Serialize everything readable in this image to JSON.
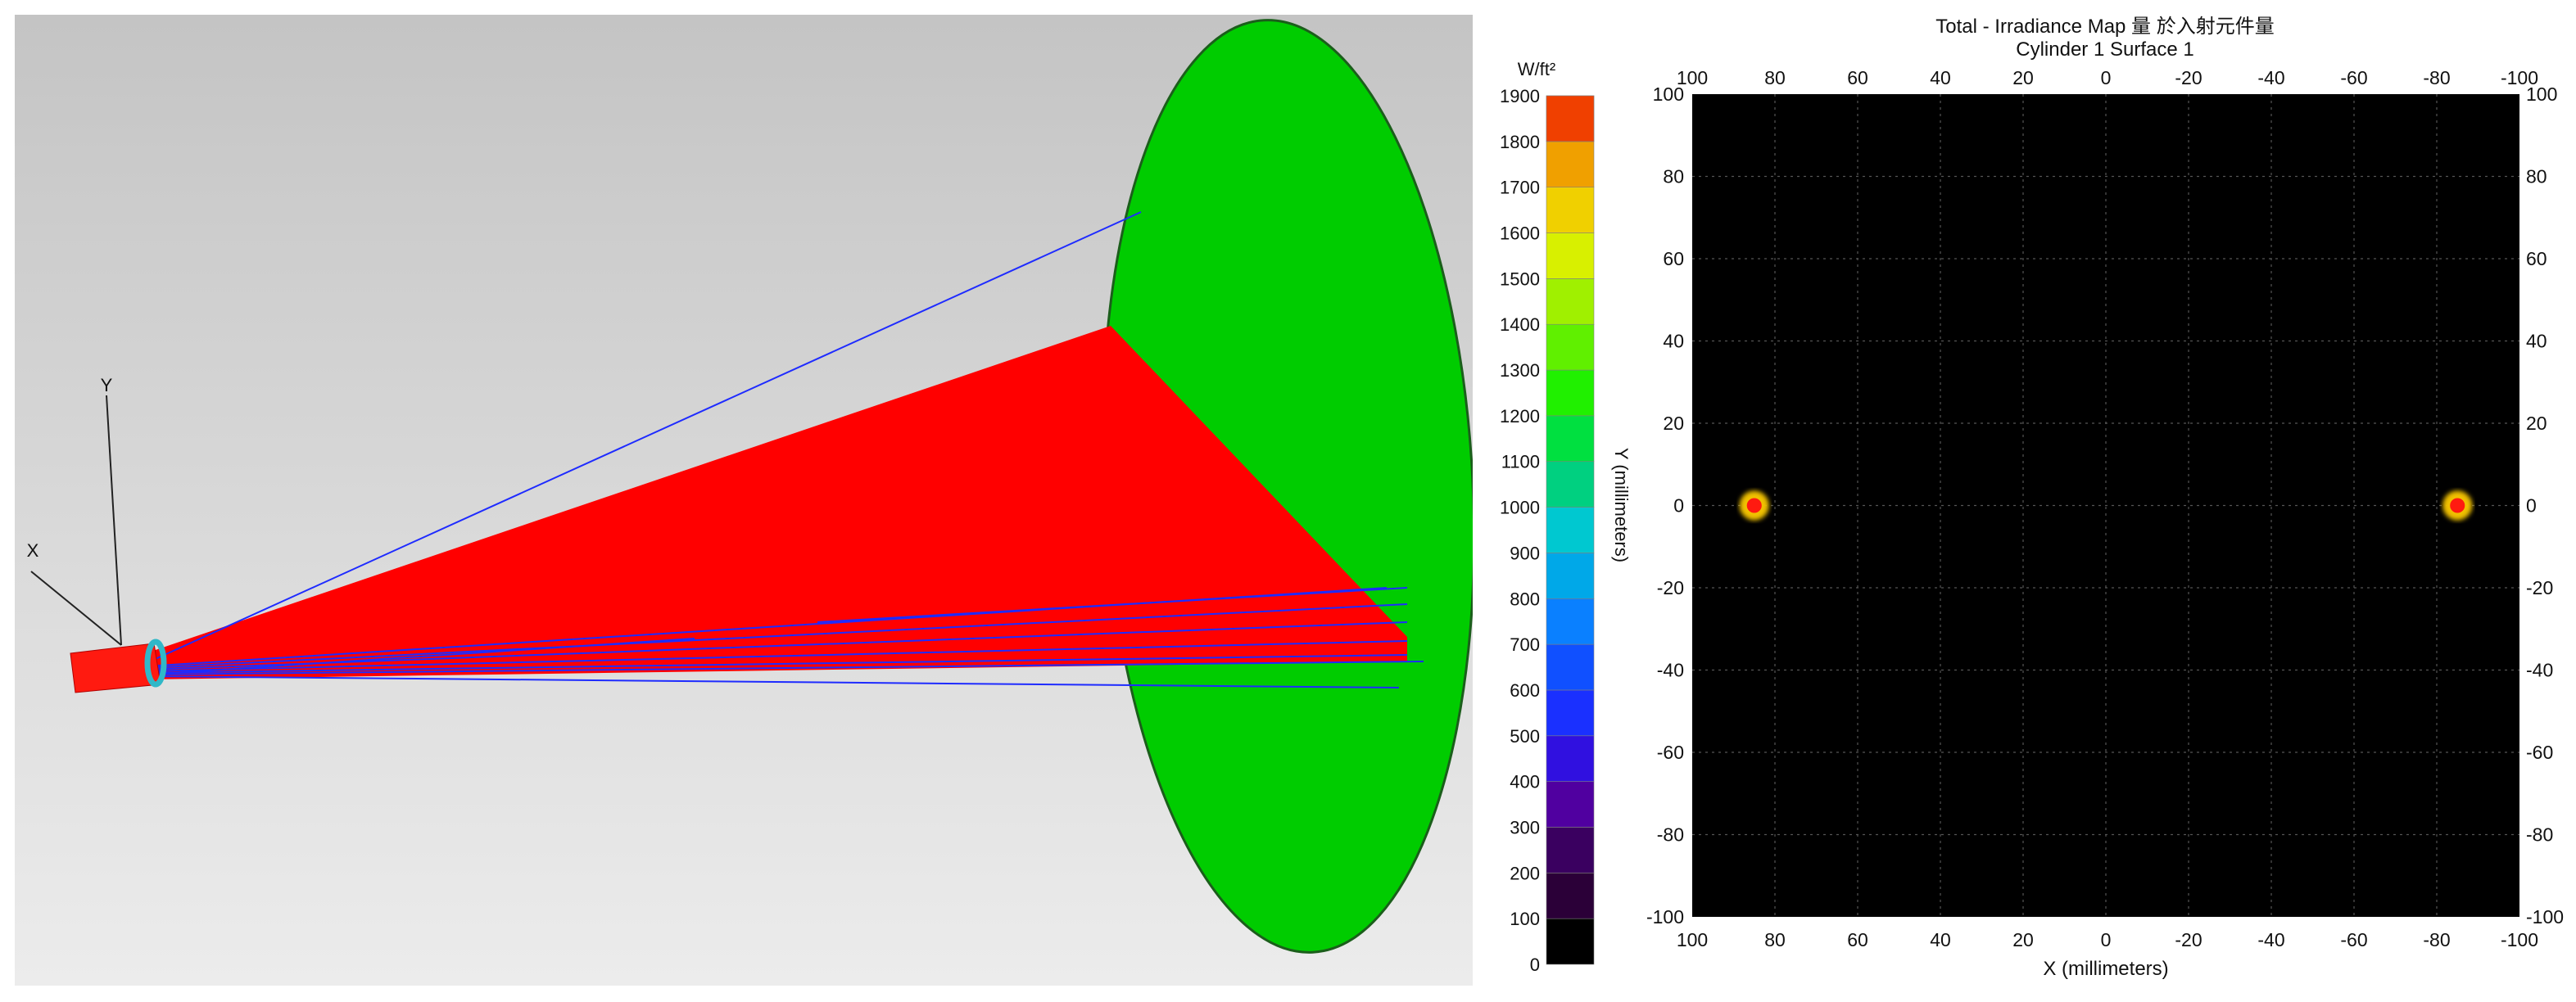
{
  "scene": {
    "axes": {
      "x_label": "X",
      "y_label": "Y"
    },
    "colors": {
      "cone": "#ff0000",
      "target": "#00cc00",
      "rays": "#1e2bff",
      "source": "#ff1a10",
      "ring": "#30b8c8"
    }
  },
  "chart_data": [
    {
      "type": "heatmap",
      "title": "Total - Irradiance Map 量 於入射元件量",
      "subtitle": "Cylinder 1 Surface 1",
      "xlabel": "X (millimeters)",
      "ylabel": "Y (millimeters)",
      "xlim": [
        100,
        -100
      ],
      "ylim": [
        -100,
        100
      ],
      "x_ticks": [
        "100",
        "80",
        "60",
        "40",
        "20",
        "0",
        "-20",
        "-40",
        "-60",
        "-80",
        "-100"
      ],
      "y_ticks": [
        "100",
        "80",
        "60",
        "40",
        "20",
        "0",
        "-20",
        "-40",
        "-60",
        "-80",
        "-100"
      ],
      "grid": true,
      "features": [
        {
          "shape": "horizontal band",
          "x_range": [
            -88,
            88
          ],
          "y": 0,
          "half_width": 4,
          "peak_at": [
            -85,
            85
          ],
          "peak_value": 1900
        }
      ],
      "colorbar": {
        "unit": "W/ft²",
        "min": 0,
        "max": 1900,
        "step": 100,
        "ticks": [
          "1900",
          "1800",
          "1700",
          "1600",
          "1500",
          "1400",
          "1300",
          "1200",
          "1100",
          "1000",
          "900",
          "800",
          "700",
          "600",
          "500",
          "400",
          "300",
          "200",
          "100",
          "0"
        ],
        "colors": [
          "#000000",
          "#2b0038",
          "#3a0060",
          "#5000a0",
          "#3010e0",
          "#1a30ff",
          "#1050ff",
          "#0a80ff",
          "#00a8e8",
          "#00c8d0",
          "#00d080",
          "#00e040",
          "#20f000",
          "#60f000",
          "#a0f000",
          "#d8f000",
          "#f0d000",
          "#f0a000",
          "#f07000",
          "#f04000"
        ]
      }
    }
  ]
}
